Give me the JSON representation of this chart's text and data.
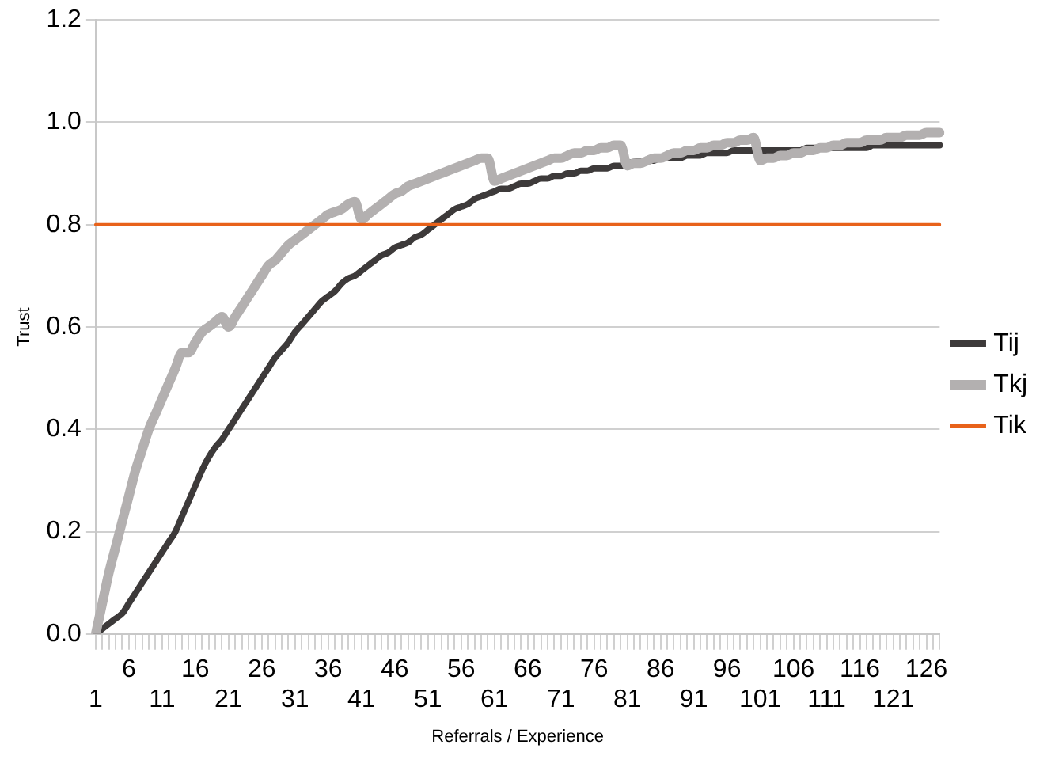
{
  "chart_data": {
    "type": "line",
    "xlabel": "Referrals / Experience",
    "ylabel": "Trust",
    "categories": [
      "1",
      null,
      null,
      null,
      null,
      "6",
      null,
      null,
      null,
      null,
      "11",
      null,
      null,
      null,
      null,
      "16",
      null,
      null,
      null,
      null,
      "21",
      null,
      null,
      null,
      null,
      "26",
      null,
      null,
      null,
      null,
      "31",
      null,
      null,
      null,
      null,
      "36",
      null,
      null,
      null,
      null,
      "41",
      null,
      null,
      null,
      null,
      "46",
      null,
      null,
      null,
      null,
      "51",
      null,
      null,
      null,
      null,
      "56",
      null,
      null,
      null,
      null,
      "61",
      null,
      null,
      null,
      null,
      "66",
      null,
      null,
      null,
      null,
      "71",
      null,
      null,
      null,
      null,
      "76",
      null,
      null,
      null,
      null,
      "81",
      null,
      null,
      null,
      null,
      "86",
      null,
      null,
      null,
      null,
      "91",
      null,
      null,
      null,
      null,
      "96",
      null,
      null,
      null,
      null,
      "101",
      null,
      null,
      null,
      null,
      "106",
      null,
      null,
      null,
      null,
      "111",
      null,
      null,
      null,
      null,
      "116",
      null,
      null,
      null,
      null,
      "121",
      null,
      null,
      null,
      null,
      "126",
      null,
      null
    ],
    "series": [
      {
        "name": "Tij",
        "color": "#3d3a3a",
        "values": [
          0,
          0.01,
          0.02,
          0.03,
          0.04,
          0.06,
          0.08,
          0.1,
          0.12,
          0.14,
          0.16,
          0.18,
          0.2,
          0.23,
          0.26,
          0.29,
          0.32,
          0.345,
          0.365,
          0.38,
          0.4,
          0.42,
          0.44,
          0.46,
          0.48,
          0.5,
          0.52,
          0.54,
          0.555,
          0.57,
          0.59,
          0.605,
          0.62,
          0.635,
          0.65,
          0.66,
          0.67,
          0.685,
          0.695,
          0.7,
          0.71,
          0.72,
          0.73,
          0.74,
          0.745,
          0.755,
          0.76,
          0.765,
          0.775,
          0.78,
          0.79,
          0.8,
          0.81,
          0.82,
          0.83,
          0.835,
          0.84,
          0.85,
          0.855,
          0.86,
          0.865,
          0.87,
          0.87,
          0.875,
          0.88,
          0.88,
          0.885,
          0.89,
          0.89,
          0.895,
          0.895,
          0.9,
          0.9,
          0.905,
          0.905,
          0.91,
          0.91,
          0.91,
          0.915,
          0.915,
          0.92,
          null,
          null,
          0.925,
          0.925,
          0.93,
          0.93,
          0.93,
          0.93,
          0.935,
          0.935,
          0.935,
          0.94,
          0.94,
          0.94,
          0.94,
          0.945,
          0.945,
          0.945,
          0.945,
          0.945,
          0.945,
          0.945,
          0.945,
          0.945,
          0.945,
          0.945,
          0.95,
          0.95,
          0.95,
          0.95,
          0.95,
          0.95,
          0.95,
          0.95,
          0.95,
          0.95,
          0.955,
          0.955,
          0.955,
          0.955,
          0.955,
          0.955,
          0.955,
          0.955,
          0.955,
          0.955,
          0.955
        ]
      },
      {
        "name": "Tkj",
        "color": "#b3b0b0",
        "values": [
          0,
          0.06,
          0.12,
          0.17,
          0.22,
          0.27,
          0.32,
          0.36,
          0.4,
          0.43,
          0.46,
          0.49,
          0.52,
          0.55,
          0.55,
          0.57,
          0.59,
          0.6,
          0.61,
          0.62,
          0.6,
          0.62,
          0.64,
          0.66,
          0.68,
          0.7,
          0.72,
          0.73,
          0.745,
          0.76,
          0.77,
          0.78,
          0.79,
          0.8,
          0.81,
          0.82,
          0.825,
          0.83,
          0.84,
          0.845,
          0.81,
          0.82,
          0.83,
          0.84,
          0.85,
          0.86,
          0.865,
          0.875,
          0.88,
          0.885,
          0.89,
          0.895,
          0.9,
          0.905,
          0.91,
          0.915,
          0.92,
          0.925,
          0.93,
          0.93,
          0.885,
          0.89,
          0.895,
          0.9,
          0.905,
          0.91,
          0.915,
          0.92,
          0.925,
          0.93,
          0.93,
          0.935,
          0.94,
          0.94,
          0.945,
          0.945,
          0.95,
          0.95,
          0.955,
          0.955,
          0.915,
          0.92,
          0.92,
          0.925,
          0.93,
          0.93,
          0.935,
          0.94,
          0.94,
          0.945,
          0.945,
          0.95,
          0.95,
          0.955,
          0.955,
          0.96,
          0.96,
          0.965,
          0.965,
          0.97,
          0.925,
          0.93,
          0.93,
          0.935,
          0.935,
          0.94,
          0.94,
          0.945,
          0.945,
          0.95,
          0.95,
          0.955,
          0.955,
          0.96,
          0.96,
          0.96,
          0.965,
          0.965,
          0.965,
          0.97,
          0.97,
          0.97,
          0.975,
          0.975,
          0.975,
          0.98,
          0.98,
          0.98
        ]
      },
      {
        "name": "Tik",
        "color": "#e8621a",
        "values": [
          0.8,
          0.8,
          0.8,
          0.8,
          0.8,
          0.8,
          0.8,
          0.8,
          0.8,
          0.8,
          0.8,
          0.8,
          0.8,
          0.8,
          0.8,
          0.8,
          0.8,
          0.8,
          0.8,
          0.8,
          0.8,
          0.8,
          0.8,
          0.8,
          0.8,
          0.8,
          0.8,
          0.8,
          0.8,
          0.8,
          0.8,
          0.8,
          0.8,
          0.8,
          0.8,
          0.8,
          0.8,
          0.8,
          0.8,
          0.8,
          0.8,
          0.8,
          0.8,
          0.8,
          0.8,
          0.8,
          0.8,
          0.8,
          0.8,
          0.8,
          0.8,
          0.8,
          0.8,
          0.8,
          0.8,
          0.8,
          0.8,
          0.8,
          0.8,
          0.8,
          0.8,
          0.8,
          0.8,
          0.8,
          0.8,
          0.8,
          0.8,
          0.8,
          0.8,
          0.8,
          0.8,
          0.8,
          0.8,
          0.8,
          0.8,
          0.8,
          0.8,
          0.8,
          0.8,
          0.8,
          0.8,
          0.8,
          0.8,
          0.8,
          0.8,
          0.8,
          0.8,
          0.8,
          0.8,
          0.8,
          0.8,
          0.8,
          0.8,
          0.8,
          0.8,
          0.8,
          0.8,
          0.8,
          0.8,
          0.8,
          0.8,
          0.8,
          0.8,
          0.8,
          0.8,
          0.8,
          0.8,
          0.8,
          0.8,
          0.8,
          0.8,
          0.8,
          0.8,
          0.8,
          0.8,
          0.8,
          0.8,
          0.8,
          0.8,
          0.8,
          0.8,
          0.8,
          0.8,
          0.8,
          0.8,
          0.8,
          0.8,
          0.8
        ]
      }
    ],
    "ylim": [
      0,
      1.2
    ],
    "yticks": [
      {
        "value": 0,
        "label": "0.0"
      },
      {
        "value": 0.2,
        "label": "0.2"
      },
      {
        "value": 0.4,
        "label": "0.4"
      },
      {
        "value": 0.6,
        "label": "0.6"
      },
      {
        "value": 0.8,
        "label": "0.8"
      },
      {
        "value": 1,
        "label": "1.0"
      },
      {
        "value": 1.2,
        "label": "1.2"
      }
    ],
    "grid": "y",
    "legend": "right"
  }
}
